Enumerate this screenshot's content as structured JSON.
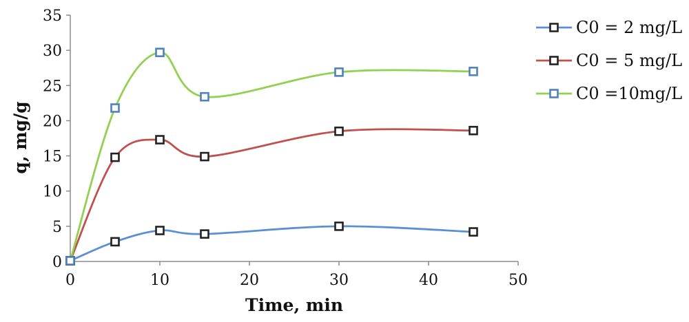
{
  "chart_data": {
    "type": "line",
    "title": "",
    "xlabel": "Time, min",
    "ylabel": "q, mg/g",
    "xlim": [
      0,
      50
    ],
    "ylim": [
      0,
      35
    ],
    "x_ticks": [
      0,
      10,
      20,
      30,
      40,
      50
    ],
    "y_ticks": [
      0,
      5,
      10,
      15,
      20,
      25,
      30,
      35
    ],
    "grid": false,
    "legend_position": "right",
    "series": [
      {
        "name": "C0 = 2 mg/L",
        "color": "#5b8fd4",
        "marker_edge": "#222222",
        "x": [
          0,
          5,
          10,
          15,
          30,
          45
        ],
        "y": [
          0.1,
          2.8,
          4.4,
          3.9,
          5.0,
          4.2
        ]
      },
      {
        "name": "C0 = 5 mg/L",
        "color": "#c0504d",
        "marker_edge": "#222222",
        "x": [
          0,
          5,
          10,
          15,
          30,
          45
        ],
        "y": [
          0.1,
          14.8,
          17.3,
          14.9,
          18.5,
          18.6
        ]
      },
      {
        "name": "C0 =10mg/L",
        "color": "#92d050",
        "marker_edge": "#4f81bd",
        "x": [
          0,
          5,
          10,
          15,
          30,
          45
        ],
        "y": [
          0.1,
          21.8,
          29.7,
          23.4,
          26.9,
          27.0
        ]
      }
    ]
  }
}
